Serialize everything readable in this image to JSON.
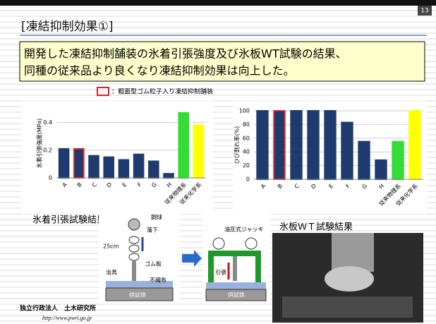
{
  "page_number": "13",
  "title": "[凍結抑制効果①]",
  "headline": [
    "開発した凍結抑制舗装の氷着引張強度及び氷板WT試験の結果、",
    "同種の従来品より良くなり凍結抑制効果は向上した。"
  ],
  "legend": "：粗面型ゴム粒子入り凍結抑制舗装",
  "captions": [
    "氷着引張試験結果",
    "氷板ＷＴ試験結果"
  ],
  "diagram": {
    "labels": [
      "鋼球",
      "落下",
      "25cm",
      "ゴム板",
      "治具",
      "不織布",
      "供試体",
      "油圧式ジャッキ",
      "引張",
      "供試体"
    ]
  },
  "footer": {
    "org": "独立行政法人　土木研究所",
    "url": "http://www.pwri.go.jp"
  },
  "chart_data": [
    {
      "type": "bar",
      "ylabel": "氷着引張強度(MPa)",
      "categories": [
        "A",
        "B",
        "C",
        "D",
        "E",
        "F",
        "G",
        "H",
        "従来物理系",
        "従来化学系"
      ],
      "values": [
        0.21,
        0.21,
        0.16,
        0.15,
        0.13,
        0.17,
        0.12,
        0.03,
        0.47,
        0.38
      ],
      "colors": [
        "#1f3a6e",
        "#1f3a6e",
        "#1f3a6e",
        "#1f3a6e",
        "#1f3a6e",
        "#1f3a6e",
        "#1f3a6e",
        "#1f3a6e",
        "#33dd33",
        "#ffff00"
      ],
      "edge_colors": [
        "#1f3a6e",
        "#e02020",
        "#1f3a6e",
        "#1f3a6e",
        "#1f3a6e",
        "#1f3a6e",
        "#1f3a6e",
        "#1f3a6e",
        "#33dd33",
        "#ffff00"
      ],
      "ylim": [
        0,
        0.5
      ],
      "yticks": [
        0,
        0.2,
        0.4
      ],
      "grid": true
    },
    {
      "type": "bar",
      "ylabel": "ひび割れ率(%)",
      "categories": [
        "A",
        "B",
        "C",
        "D",
        "E",
        "F",
        "G",
        "H",
        "従来物理系",
        "従来化学系"
      ],
      "values": [
        100,
        100,
        100,
        100,
        100,
        83,
        55,
        28,
        55,
        100
      ],
      "colors": [
        "#1f3a6e",
        "#1f3a6e",
        "#1f3a6e",
        "#1f3a6e",
        "#1f3a6e",
        "#1f3a6e",
        "#1f3a6e",
        "#1f3a6e",
        "#33dd33",
        "#ffff00"
      ],
      "edge_colors": [
        "#1f3a6e",
        "#e02020",
        "#1f3a6e",
        "#1f3a6e",
        "#1f3a6e",
        "#1f3a6e",
        "#1f3a6e",
        "#1f3a6e",
        "#33dd33",
        "#ffff00"
      ],
      "ylim": [
        0,
        100
      ],
      "yticks": [
        0,
        20,
        40,
        60,
        80,
        100
      ],
      "grid": true
    }
  ]
}
